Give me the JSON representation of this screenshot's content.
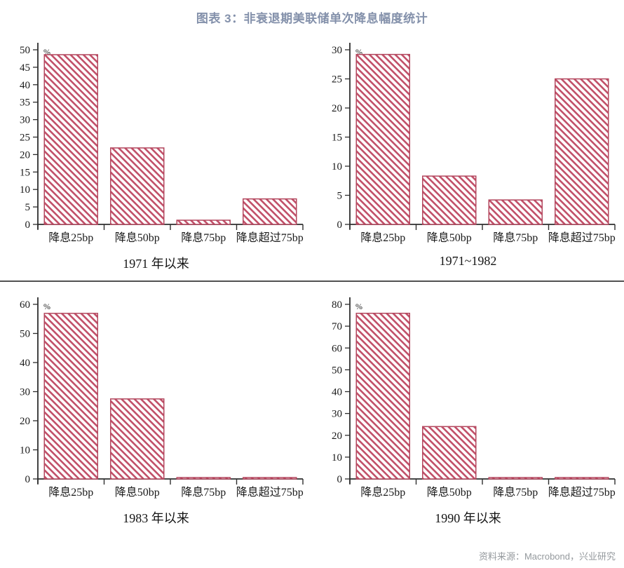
{
  "page": {
    "title": "图表 3：非衰退期美联储单次降息幅度统计",
    "source_note": "资料来源：Macrobond，兴业研究"
  },
  "colors": {
    "title_text": "#8491ab",
    "hatch_stripe": "#c14f68",
    "bar_border": "#b3475e",
    "axis": "#2e2e2e",
    "tick_text": "#1a1a1a",
    "divider": "#515151",
    "footer_text": "#94999d"
  },
  "chart_data": [
    {
      "type": "bar",
      "title": "1971 年以来",
      "categories": [
        "降息25bp",
        "降息50bp",
        "降息75bp",
        "降息超过75bp"
      ],
      "values": [
        48.6,
        21.9,
        1.2,
        7.3
      ],
      "xlabel": "",
      "ylabel": "%",
      "ylim": [
        0,
        50
      ],
      "ytick_step": 5,
      "grid": false,
      "legend_position": "none",
      "bar_style": "diagonal-hatch"
    },
    {
      "type": "bar",
      "title": "1971~1982",
      "categories": [
        "降息25bp",
        "降息50bp",
        "降息75bp",
        "降息超过75bp"
      ],
      "values": [
        29.2,
        8.3,
        4.2,
        25.0
      ],
      "xlabel": "",
      "ylabel": "%",
      "ylim": [
        0,
        30
      ],
      "ytick_step": 5,
      "grid": false,
      "legend_position": "none",
      "bar_style": "diagonal-hatch"
    },
    {
      "type": "bar",
      "title": "1983 年以来",
      "categories": [
        "降息25bp",
        "降息50bp",
        "降息75bp",
        "降息超过75bp"
      ],
      "values": [
        56.9,
        27.5,
        0.3,
        0.3
      ],
      "xlabel": "",
      "ylabel": "%",
      "ylim": [
        0,
        60
      ],
      "ytick_step": 10,
      "grid": false,
      "legend_position": "none",
      "bar_style": "diagonal-hatch"
    },
    {
      "type": "bar",
      "title": "1990 年以来",
      "categories": [
        "降息25bp",
        "降息50bp",
        "降息75bp",
        "降息超过75bp"
      ],
      "values": [
        75.9,
        24.0,
        0.3,
        0.3
      ],
      "xlabel": "",
      "ylabel": "%",
      "ylim": [
        0,
        80
      ],
      "ytick_step": 10,
      "grid": false,
      "legend_position": "none",
      "bar_style": "diagonal-hatch"
    }
  ]
}
